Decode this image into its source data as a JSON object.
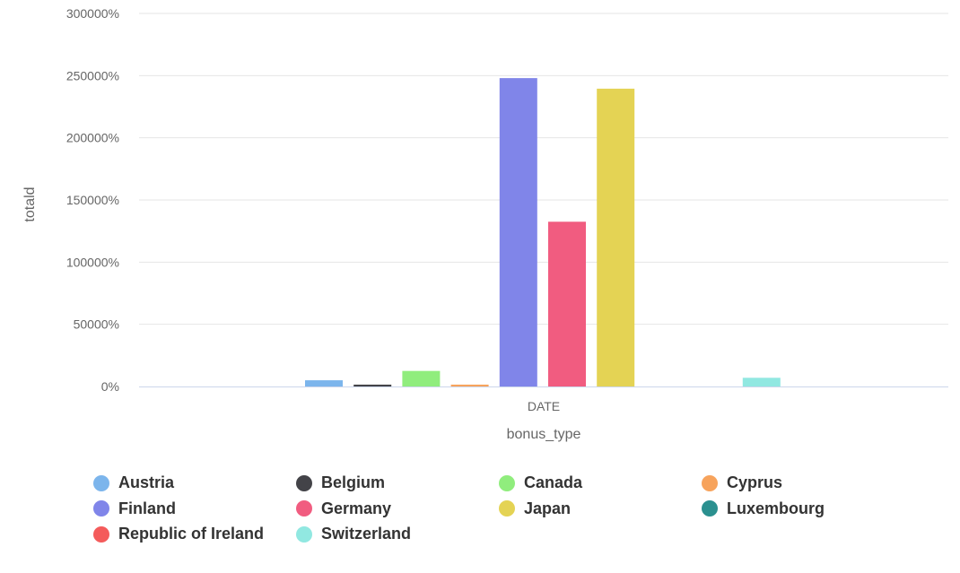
{
  "chart_data": {
    "type": "bar",
    "categories": [
      "DATE"
    ],
    "xlabel": "bonus_type",
    "ylabel": "totald",
    "ylim": [
      0,
      300000
    ],
    "yticks": [
      0,
      50000,
      100000,
      150000,
      200000,
      250000,
      300000
    ],
    "ytick_suffix": "%",
    "grid": true,
    "legend_position": "bottom",
    "series": [
      {
        "name": "Austria",
        "values": [
          5000
        ],
        "color": "#7cb5ec"
      },
      {
        "name": "Belgium",
        "values": [
          1500
        ],
        "color": "#434348"
      },
      {
        "name": "Canada",
        "values": [
          12500
        ],
        "color": "#90ed7d"
      },
      {
        "name": "Cyprus",
        "values": [
          1500
        ],
        "color": "#f7a35c"
      },
      {
        "name": "Finland",
        "values": [
          248000
        ],
        "color": "#8085e9"
      },
      {
        "name": "Germany",
        "values": [
          132500
        ],
        "color": "#f15c80"
      },
      {
        "name": "Japan",
        "values": [
          239500
        ],
        "color": "#e4d354"
      },
      {
        "name": "Luxembourg",
        "values": [
          0
        ],
        "color": "#2b908f"
      },
      {
        "name": "Republic of Ireland",
        "values": [
          0
        ],
        "color": "#f45b5b"
      },
      {
        "name": "Switzerland",
        "values": [
          7000
        ],
        "color": "#91e8e1"
      }
    ]
  }
}
